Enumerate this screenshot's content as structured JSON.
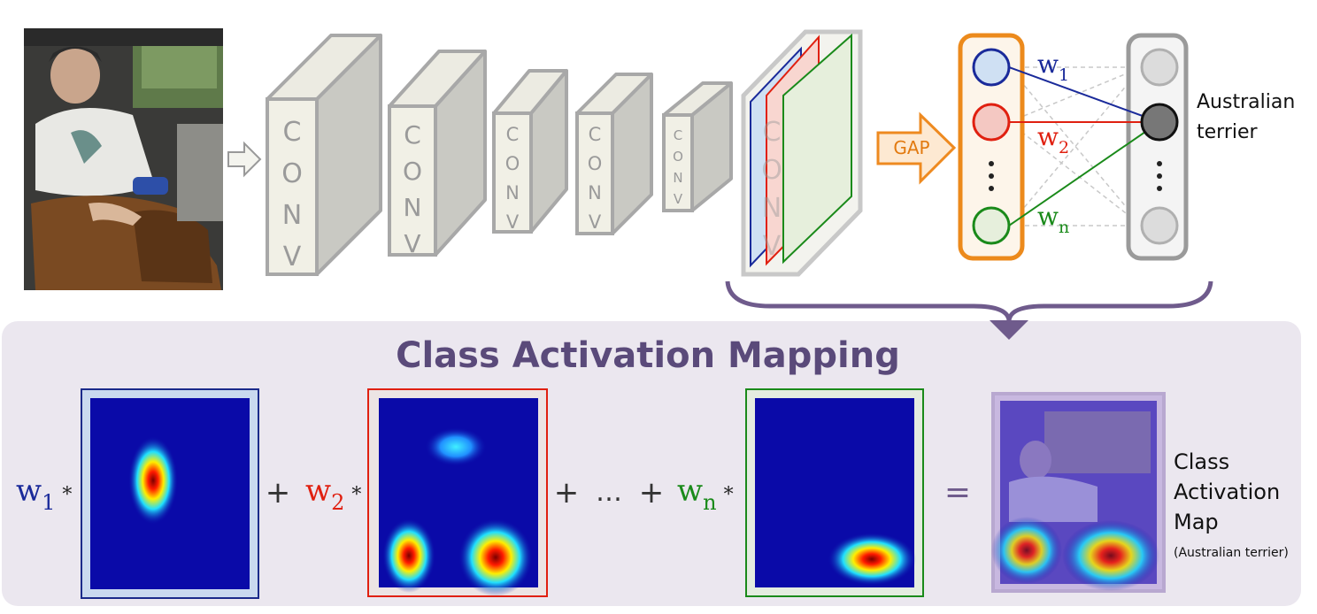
{
  "network": {
    "conv_labels": [
      "CONV",
      "CONV",
      "CONV",
      "CONV",
      "CONV",
      "CONV"
    ],
    "pool_label": "GAP",
    "weights": [
      {
        "symbol": "w",
        "subscript": "1"
      },
      {
        "symbol": "w",
        "subscript": "2"
      },
      {
        "symbol": "w",
        "subscript": "n"
      }
    ],
    "output_class": [
      "Australian",
      "terrier"
    ]
  },
  "cam": {
    "title": "Class Activation Mapping",
    "terms": [
      {
        "symbol": "w",
        "subscript": "1"
      },
      {
        "symbol": "w",
        "subscript": "2"
      },
      {
        "symbol": "w",
        "subscript": "n"
      }
    ],
    "multiply": "*",
    "plus": "+",
    "ellipsis": "…",
    "equals": "=",
    "result_label": [
      "Class",
      "Activation",
      "Map"
    ],
    "result_note": "(Australian terrier)"
  }
}
